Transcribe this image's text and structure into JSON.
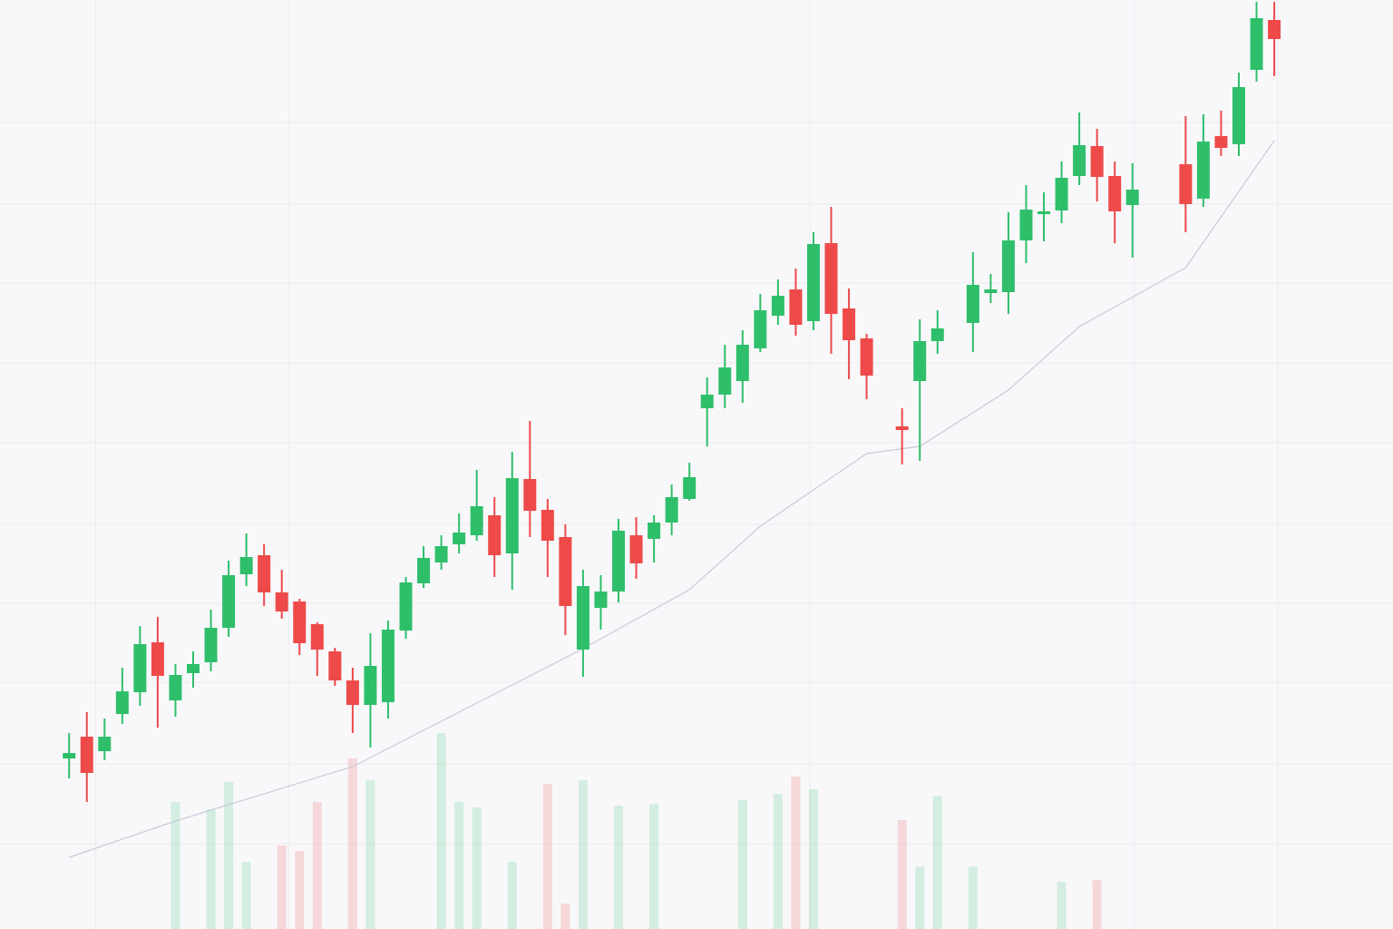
{
  "chart_data": {
    "type": "candlestick",
    "categories": [
      null,
      null,
      null,
      null,
      null,
      null,
      null,
      null,
      null,
      null,
      null,
      null,
      null,
      null,
      null,
      null,
      null,
      null,
      null,
      null,
      null,
      null,
      null,
      null,
      null,
      null,
      null,
      null,
      null,
      null,
      null,
      null,
      null,
      null,
      null,
      null,
      null,
      null,
      null,
      null,
      null,
      null,
      null,
      null,
      null,
      null,
      null,
      null,
      null,
      null,
      null,
      null,
      null,
      null,
      null,
      null,
      null,
      null,
      null,
      null,
      null,
      null,
      null,
      null,
      null,
      null,
      null,
      null,
      null
    ],
    "open": [
      188,
      212,
      196,
      237,
      261,
      316,
      252,
      282,
      294,
      332,
      391,
      412,
      371,
      361,
      336,
      306,
      274,
      247,
      250,
      329,
      381,
      404,
      424,
      434,
      456,
      414,
      496,
      462,
      432,
      308,
      354,
      372,
      434,
      430,
      448,
      474,
      574,
      589,
      604,
      640,
      676,
      705,
      670,
      756,
      684,
      651,
      null,
      554,
      604,
      648,
      null,
      668,
      701,
      702,
      759,
      788,
      792,
      830,
      863,
      830,
      798,
      null,
      null,
      843,
      805,
      874,
      865,
      947,
      1002
    ],
    "high": [
      216,
      239,
      232,
      288,
      334,
      344,
      292,
      306,
      352,
      406,
      436,
      424,
      396,
      364,
      338,
      310,
      288,
      326,
      340,
      388,
      422,
      434,
      458,
      506,
      476,
      526,
      560,
      474,
      446,
      396,
      390,
      452,
      454,
      456,
      490,
      514,
      608,
      644,
      660,
      700,
      716,
      728,
      768,
      796,
      706,
      656,
      null,
      574,
      672,
      682,
      null,
      746,
      722,
      790,
      820,
      812,
      846,
      900,
      882,
      846,
      844,
      null,
      null,
      896,
      898,
      902,
      944,
      1022,
      1022
    ],
    "low": [
      166,
      140,
      186,
      226,
      246,
      222,
      234,
      266,
      284,
      322,
      378,
      356,
      342,
      302,
      279,
      268,
      216,
      200,
      232,
      320,
      376,
      396,
      414,
      428,
      388,
      374,
      432,
      388,
      324,
      278,
      330,
      360,
      386,
      404,
      434,
      472,
      532,
      574,
      580,
      636,
      666,
      654,
      660,
      634,
      606,
      584,
      null,
      512,
      516,
      634,
      null,
      636,
      690,
      678,
      734,
      758,
      778,
      820,
      802,
      756,
      740,
      null,
      null,
      768,
      796,
      852,
      852,
      934,
      940
    ],
    "close": [
      194,
      172,
      212,
      262,
      314,
      279,
      280,
      292,
      332,
      390,
      410,
      371,
      350,
      315,
      308,
      274,
      247,
      290,
      330,
      382,
      409,
      422,
      437,
      466,
      412,
      497,
      461,
      428,
      356,
      378,
      372,
      439,
      403,
      448,
      476,
      498,
      589,
      619,
      644,
      682,
      698,
      666,
      755,
      678,
      649,
      610,
      null,
      550,
      648,
      662,
      null,
      710,
      705,
      759,
      793,
      791,
      828,
      864,
      829,
      791,
      815,
      null,
      null,
      799,
      868,
      861,
      928,
      1004,
      981
    ],
    "volume": [
      null,
      null,
      null,
      null,
      null,
      null,
      140,
      null,
      132,
      162,
      74,
      null,
      92,
      86,
      140,
      null,
      188,
      164,
      null,
      null,
      null,
      216,
      140,
      134,
      null,
      74,
      null,
      160,
      28,
      164,
      null,
      136,
      null,
      138,
      null,
      null,
      null,
      null,
      142,
      null,
      149,
      168,
      154,
      null,
      null,
      null,
      null,
      120,
      69,
      147,
      null,
      69,
      null,
      null,
      null,
      null,
      52,
      null,
      54,
      null,
      null,
      null,
      null,
      null,
      null,
      null,
      null,
      null,
      null
    ],
    "ma": {
      "x": [
        0,
        6,
        16,
        23,
        29,
        35,
        39,
        45,
        48,
        53,
        57,
        63,
        68
      ],
      "values": [
        79,
        119,
        179,
        249,
        309,
        374,
        444,
        524,
        532,
        594,
        664,
        729,
        869
      ],
      "color": "#c9cadb"
    },
    "up_color": "#2fbf6b",
    "down_color": "#ef4a4a",
    "xlim": [
      -3.9,
      74.7
    ],
    "ylim": [
      0,
      1024
    ],
    "xticks": [
      1.5,
      12.4,
      41.8,
      60.1,
      68.2
    ],
    "yticks": [
      94,
      182,
      272,
      359,
      446,
      536,
      624,
      712,
      799,
      889
    ],
    "grid": true
  }
}
